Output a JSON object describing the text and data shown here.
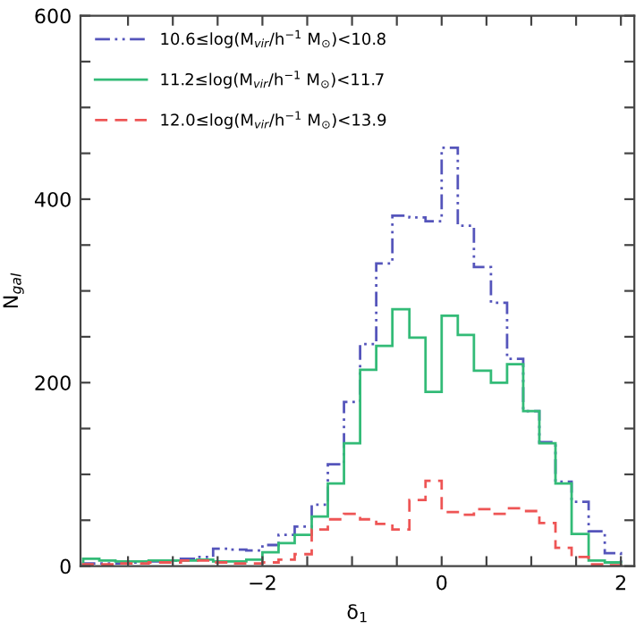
{
  "chart_data": {
    "type": "histogram",
    "xlabel": "δ$_{1}$",
    "ylabel": "N$_{gal}$",
    "xlim": [
      -4.03,
      2.15
    ],
    "ylim": [
      0,
      600
    ],
    "xticks": [
      {
        "value": -3.5,
        "label": null
      },
      {
        "value": -3,
        "label": null
      },
      {
        "value": -2.5,
        "label": null
      },
      {
        "value": -2,
        "label": "−2"
      },
      {
        "value": -1.5,
        "label": null
      },
      {
        "value": -1,
        "label": null
      },
      {
        "value": -0.5,
        "label": null
      },
      0,
      {
        "value": 0.5,
        "label": null
      },
      {
        "value": 1,
        "label": null
      },
      {
        "value": 1.5,
        "label": null
      },
      2
    ],
    "yticks": [
      0,
      {
        "value": 50,
        "label": null
      },
      {
        "value": 100,
        "label": null
      },
      {
        "value": 150,
        "label": null
      },
      200,
      {
        "value": 250,
        "label": null
      },
      {
        "value": 300,
        "label": null
      },
      {
        "value": 350,
        "label": null
      },
      400,
      {
        "value": 450,
        "label": null
      },
      {
        "value": 500,
        "label": null
      },
      {
        "value": 550,
        "label": null
      },
      600
    ],
    "bins": [
      -4,
      -3.82,
      -3.64,
      -3.45,
      -3.27,
      -3.09,
      -2.91,
      -2.73,
      -2.55,
      -2.36,
      -2.18,
      -2,
      -1.82,
      -1.64,
      -1.45,
      -1.27,
      -1.09,
      -0.91,
      -0.73,
      -0.55,
      -0.36,
      -0.18,
      0,
      0.18,
      0.36,
      0.55,
      0.73,
      0.91,
      1.09,
      1.27,
      1.45,
      1.64,
      1.82,
      2
    ],
    "legend": "top left",
    "grid": false,
    "series": [
      {
        "name": "10.6≤log(M$_{vir}$/h$^{−1}$ M$_{⊙}$)<10.8",
        "color": "#5555bb",
        "line_style": "dashdot",
        "values": [
          3,
          3,
          3,
          4,
          5,
          6,
          8,
          10,
          19,
          18,
          17,
          23,
          34,
          43,
          67,
          111,
          179,
          242,
          330,
          382,
          380,
          376,
          456,
          371,
          326,
          287,
          226,
          169,
          135,
          92,
          70,
          38,
          14
        ]
      },
      {
        "name": "11.2≤log(M$_{vir}$/h$^{−1}$ M$_{⊙}$)<11.7",
        "color": "#33bb77",
        "line_style": "solid",
        "values": [
          8,
          6,
          5,
          5,
          6,
          6,
          6,
          7,
          5,
          5,
          7,
          15,
          25,
          34,
          54,
          90,
          134,
          214,
          240,
          280,
          249,
          190,
          273,
          252,
          213,
          200,
          220,
          169,
          134,
          90,
          35,
          6,
          4
        ]
      },
      {
        "name": "12.0≤log(M$_{vir}$/h$^{−1}$ M$_{⊙}$)<13.9",
        "color": "#ee5555",
        "line_style": "dashed",
        "values": [
          2,
          2,
          3,
          3,
          4,
          4,
          6,
          6,
          4,
          3,
          3,
          4,
          7,
          13,
          40,
          51,
          57,
          51,
          46,
          40,
          72,
          93,
          59,
          56,
          62,
          57,
          63,
          60,
          47,
          20,
          10,
          2,
          1
        ]
      }
    ]
  }
}
